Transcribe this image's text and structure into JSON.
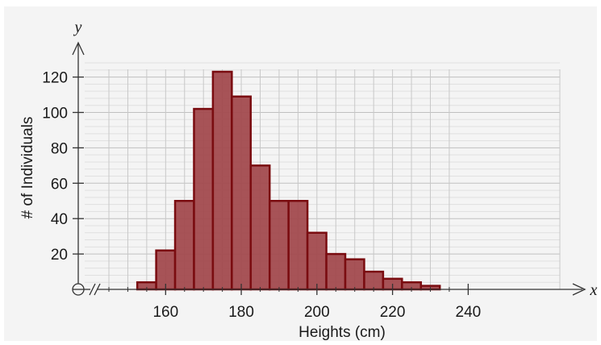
{
  "chart_data": {
    "type": "bar",
    "title": "",
    "xlabel": "Heights (cm)",
    "ylabel": "# of Individuals",
    "x_axis_letter": "x",
    "y_axis_letter": "y",
    "xlim": [
      140,
      240
    ],
    "ylim": [
      0,
      130
    ],
    "x_ticks": [
      160,
      180,
      200,
      220,
      240
    ],
    "y_ticks": [
      20,
      40,
      60,
      80,
      100,
      120
    ],
    "bin_width": 5,
    "bins": [
      {
        "start": 152.5,
        "end": 157.5,
        "value": 4
      },
      {
        "start": 157.5,
        "end": 162.5,
        "value": 22
      },
      {
        "start": 162.5,
        "end": 167.5,
        "value": 50
      },
      {
        "start": 167.5,
        "end": 172.5,
        "value": 102
      },
      {
        "start": 172.5,
        "end": 177.5,
        "value": 123
      },
      {
        "start": 177.5,
        "end": 182.5,
        "value": 109
      },
      {
        "start": 182.5,
        "end": 187.5,
        "value": 70
      },
      {
        "start": 187.5,
        "end": 192.5,
        "value": 50
      },
      {
        "start": 192.5,
        "end": 197.5,
        "value": 50
      },
      {
        "start": 197.5,
        "end": 202.5,
        "value": 32
      },
      {
        "start": 202.5,
        "end": 207.5,
        "value": 20
      },
      {
        "start": 207.5,
        "end": 212.5,
        "value": 17
      },
      {
        "start": 212.5,
        "end": 217.5,
        "value": 10
      },
      {
        "start": 217.5,
        "end": 222.5,
        "value": 6
      },
      {
        "start": 222.5,
        "end": 227.5,
        "value": 4
      },
      {
        "start": 227.5,
        "end": 232.5,
        "value": 2
      }
    ],
    "grid": true,
    "colors": {
      "bar_fill": "#a24a4e",
      "bar_stroke": "#7a0c10",
      "grid": "#c8c8c8",
      "axis": "#333333"
    }
  }
}
